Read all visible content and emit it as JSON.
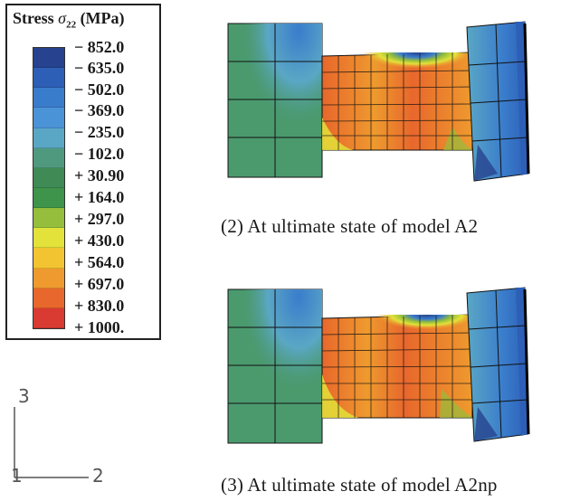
{
  "legend": {
    "title_prefix": "Stress ",
    "sigma": "σ",
    "subscript": "22",
    "unit": " (MPa)",
    "ticks": [
      "− 852.0",
      "− 635.0",
      "− 502.0",
      "− 369.0",
      "− 235.0",
      "− 102.0",
      "+ 30.90",
      "+ 164.0",
      "+ 297.0",
      "+ 430.0",
      "+ 564.0",
      "+ 697.0",
      "+ 830.0",
      "+ 1000."
    ],
    "colors": [
      "#27428e",
      "#2d5fb6",
      "#3a7ccc",
      "#4a93d6",
      "#5aa7c5",
      "#4f9a7f",
      "#3f8a55",
      "#3d944a",
      "#94be3c",
      "#e3e23a",
      "#f2c431",
      "#ee9a2e",
      "#e8672c",
      "#d93a32"
    ]
  },
  "panels": [
    {
      "caption": "(2) At ultimate state of model A2"
    },
    {
      "caption": "(3) At ultimate state of model A2np"
    }
  ],
  "axes": {
    "vertical": "3",
    "origin": "1",
    "horizontal": "2"
  }
}
